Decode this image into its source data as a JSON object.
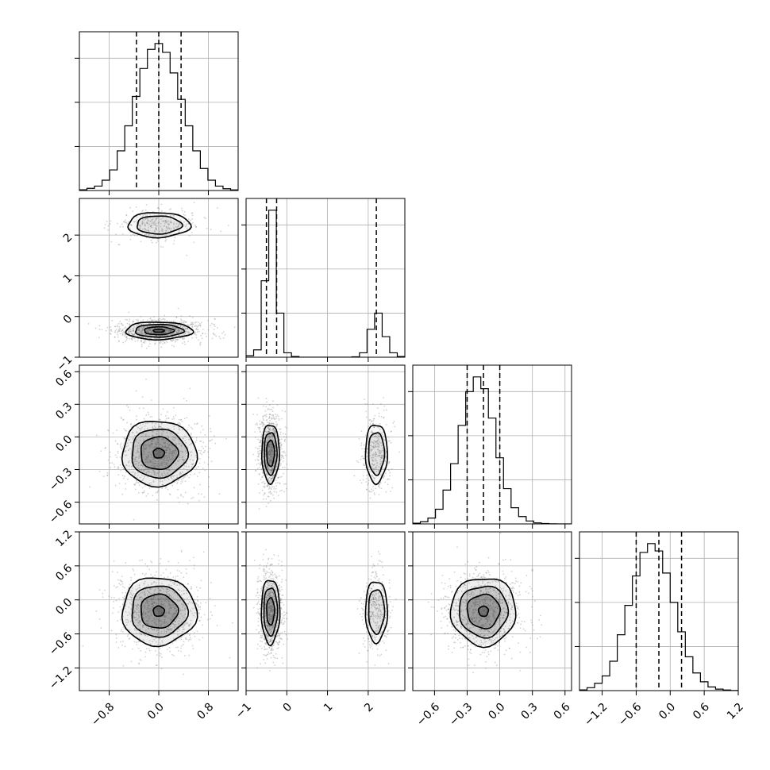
{
  "chart_data": {
    "type": "corner",
    "title": "",
    "grid": true,
    "colors": {
      "line": "#000000",
      "scatter": "#7f7f7f",
      "grid": "#b0b0b0",
      "contour_fill": "#404040"
    },
    "params": [
      {
        "range": [
          -1.28,
          1.28
        ],
        "ticks": [
          -0.8,
          0.0,
          0.8
        ],
        "tick_labels": [
          "−0.8",
          "0.0",
          "0.8"
        ],
        "quantiles": [
          -0.36,
          0.0,
          0.36
        ],
        "hist": [
          0.005,
          0.015,
          0.03,
          0.07,
          0.14,
          0.27,
          0.44,
          0.64,
          0.83,
          0.96,
          1.0,
          0.94,
          0.8,
          0.62,
          0.44,
          0.27,
          0.15,
          0.07,
          0.03,
          0.012,
          0.004
        ]
      },
      {
        "range": [
          -1.0,
          2.9
        ],
        "ticks": [
          -1,
          0,
          1,
          2
        ],
        "tick_labels": [
          "−1",
          "0",
          "1",
          "2"
        ],
        "quantiles": [
          -0.5,
          -0.25,
          2.2
        ],
        "hist": [
          0.01,
          0.05,
          0.52,
          1.0,
          0.3,
          0.03,
          0.005,
          0.0,
          0.0,
          0.0,
          0.0,
          0.0,
          0.0,
          0.0,
          0.003,
          0.03,
          0.19,
          0.3,
          0.14,
          0.03,
          0.005
        ]
      },
      {
        "range": [
          -0.8,
          0.66
        ],
        "ticks": [
          -0.6,
          -0.3,
          0.0,
          0.3,
          0.6
        ],
        "tick_labels": [
          "−0.6",
          "−0.3",
          "0.0",
          "0.3",
          "0.6"
        ],
        "quantiles": [
          -0.3,
          -0.15,
          0.0
        ],
        "hist": [
          0.005,
          0.015,
          0.04,
          0.1,
          0.23,
          0.41,
          0.67,
          0.9,
          1.0,
          0.92,
          0.72,
          0.45,
          0.24,
          0.11,
          0.05,
          0.02,
          0.007,
          0.003,
          0.001,
          0.0,
          0.0
        ]
      },
      {
        "range": [
          -1.6,
          1.2
        ],
        "ticks": [
          -1.2,
          -0.6,
          0.0,
          0.6,
          1.2
        ],
        "tick_labels": [
          "−1.2",
          "−0.6",
          "0.0",
          "0.6",
          "1.2"
        ],
        "quantiles": [
          -0.6,
          -0.2,
          0.2
        ],
        "hist": [
          0.005,
          0.02,
          0.05,
          0.1,
          0.2,
          0.38,
          0.58,
          0.78,
          0.94,
          1.0,
          0.95,
          0.8,
          0.6,
          0.4,
          0.23,
          0.12,
          0.06,
          0.025,
          0.01,
          0.004,
          0.001
        ]
      }
    ],
    "hist_ylim": [
      0,
      1.08
    ],
    "hist_yticks": [
      0.3,
      0.6,
      0.9
    ],
    "pairs": [
      {
        "row": 1,
        "col": 0,
        "clusters": [
          {
            "cx": 0.0,
            "cy": 2.25,
            "sx": 0.28,
            "sy": 0.17,
            "weight": 0.35,
            "levels": [
              0.5,
              1.0
            ]
          },
          {
            "cx": 0.0,
            "cy": -0.35,
            "sx": 0.3,
            "sy": 0.12,
            "weight": 1.0,
            "levels": [
              0.5,
              1.0,
              1.5,
              2.0
            ]
          }
        ]
      },
      {
        "row": 2,
        "col": 0,
        "clusters": [
          {
            "cx": 0.0,
            "cy": -0.15,
            "sx": 0.3,
            "sy": 0.15,
            "weight": 1.0,
            "levels": [
              0.3,
              0.8,
              1.3,
              2.0
            ]
          }
        ]
      },
      {
        "row": 2,
        "col": 1,
        "clusters": [
          {
            "cx": -0.4,
            "cy": -0.15,
            "sx": 0.12,
            "sy": 0.15,
            "weight": 1.0,
            "levels": [
              0.5,
              1.0,
              1.5
            ]
          },
          {
            "cx": 2.2,
            "cy": -0.15,
            "sx": 0.15,
            "sy": 0.15,
            "weight": 0.4,
            "levels": [
              0.5,
              1.0
            ]
          }
        ]
      },
      {
        "row": 3,
        "col": 0,
        "clusters": [
          {
            "cx": 0.0,
            "cy": -0.2,
            "sx": 0.3,
            "sy": 0.3,
            "weight": 1.0,
            "levels": [
              0.3,
              0.8,
              1.3,
              2.0
            ]
          }
        ]
      },
      {
        "row": 3,
        "col": 1,
        "clusters": [
          {
            "cx": -0.4,
            "cy": -0.2,
            "sx": 0.12,
            "sy": 0.3,
            "weight": 1.0,
            "levels": [
              0.4,
              0.9,
              1.5
            ]
          },
          {
            "cx": 2.2,
            "cy": -0.2,
            "sx": 0.15,
            "sy": 0.3,
            "weight": 0.4,
            "levels": [
              0.5,
              1.0
            ]
          }
        ]
      },
      {
        "row": 3,
        "col": 2,
        "clusters": [
          {
            "cx": -0.15,
            "cy": -0.2,
            "sx": 0.15,
            "sy": 0.3,
            "weight": 1.0,
            "levels": [
              0.3,
              0.8,
              1.3,
              2.0
            ]
          }
        ]
      }
    ]
  }
}
